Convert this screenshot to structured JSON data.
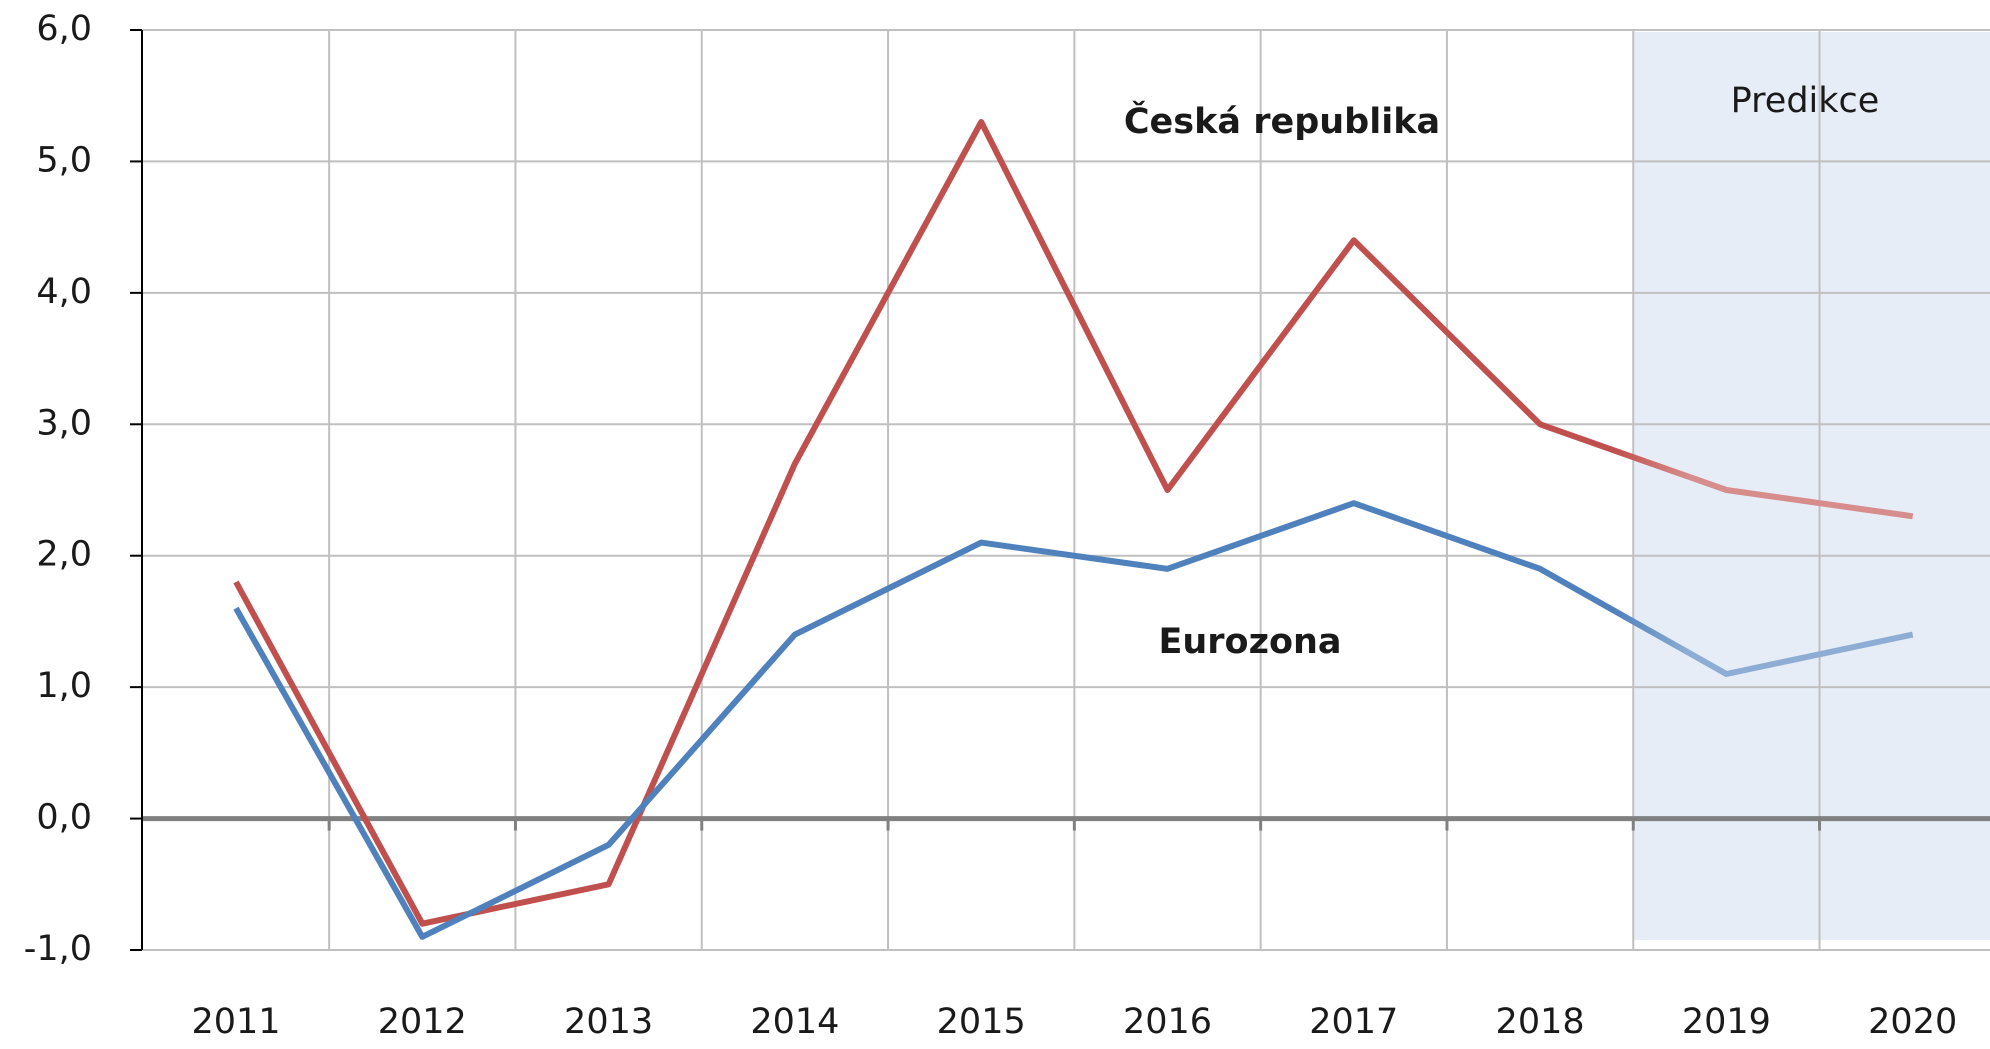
{
  "chart_data": {
    "type": "line",
    "categories": [
      "2011",
      "2012",
      "2013",
      "2014",
      "2015",
      "2016",
      "2017",
      "2018",
      "2019",
      "2020"
    ],
    "series": [
      {
        "name": "Česká republika",
        "color": "#c0504d",
        "values": [
          1.8,
          -0.8,
          -0.5,
          2.7,
          5.3,
          2.5,
          4.4,
          3.0,
          2.5,
          2.3
        ]
      },
      {
        "name": "Eurozona",
        "color": "#4f81bd",
        "values": [
          1.6,
          -0.9,
          -0.2,
          1.4,
          2.1,
          1.9,
          2.4,
          1.9,
          1.1,
          1.4
        ]
      }
    ],
    "annotation": "Predikce",
    "ylim": [
      -1,
      6
    ],
    "yticks": [
      {
        "value": -1,
        "label": "-1,0"
      },
      {
        "value": 0,
        "label": "0,0"
      },
      {
        "value": 1,
        "label": "1,0"
      },
      {
        "value": 2,
        "label": "2,0"
      },
      {
        "value": 3,
        "label": "3,0"
      },
      {
        "value": 4,
        "label": "4,0"
      },
      {
        "value": 5,
        "label": "5,0"
      },
      {
        "value": 6,
        "label": "6,0"
      }
    ],
    "grid": true
  }
}
